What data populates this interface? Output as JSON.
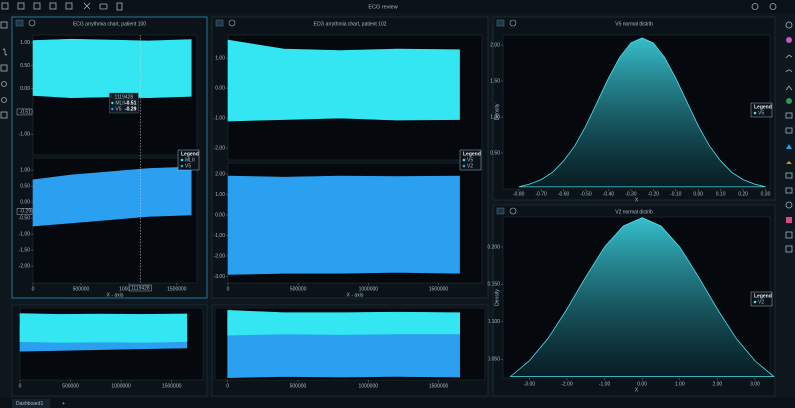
{
  "header": {
    "title": "ECG review"
  },
  "tabs": [
    "Dashboard1",
    "+"
  ],
  "chart_data": [
    {
      "type": "band",
      "title": "ECG arrythmia chart, patient 100",
      "xlabel": "X - axis",
      "xlim": [
        0,
        1710000
      ],
      "xticks": [
        0,
        500000,
        1000000,
        1500000
      ],
      "legend_title": "Legend",
      "series": [
        {
          "name": "MLII",
          "color": "#33e6f2",
          "x": [
            0,
            400000,
            800000,
            1200000,
            1650000
          ],
          "upper": [
            1.05,
            1.08,
            1.06,
            1.04,
            1.07
          ],
          "lower": [
            -0.15,
            -0.2,
            -0.18,
            -0.2,
            -0.17
          ],
          "ylim": [
            -1.45,
            1.17
          ],
          "yticks": [
            {
              "value": 1,
              "label": "1.00"
            },
            {
              "value": 0.5,
              "label": "0.50"
            },
            {
              "value": 0,
              "label": "0.00"
            },
            {
              "value": -0.5,
              "label": "-0.50"
            },
            {
              "value": -1,
              "label": "-1.00"
            }
          ]
        },
        {
          "name": "V5",
          "color": "#2b9ff0",
          "x": [
            0,
            400000,
            800000,
            1200000,
            1650000
          ],
          "upper": [
            0.7,
            0.85,
            0.95,
            1.05,
            1.1
          ],
          "lower": [
            -0.75,
            -0.65,
            -0.55,
            -0.45,
            -0.4
          ],
          "ylim": [
            -2.53,
            1.38
          ],
          "yticks": [
            {
              "value": 1,
              "label": "1.00"
            },
            {
              "value": 0.5,
              "label": "0.50"
            },
            {
              "value": 0,
              "label": "0.00"
            },
            {
              "value": -0.5,
              "label": "-0.50"
            },
            {
              "value": -1,
              "label": "-1.00"
            },
            {
              "value": -1.5,
              "label": "-1.50"
            },
            {
              "value": -2,
              "label": "-2.00"
            }
          ]
        }
      ],
      "crosshair": {
        "x": 1119428,
        "label": "1119428",
        "values": [
          {
            "value": -0.51,
            "label": "-0.51"
          },
          {
            "value": -0.29,
            "label": "-0.29"
          }
        ]
      },
      "tooltip": {
        "title": "1119428",
        "rows": [
          [
            "MLII",
            "-0.51"
          ],
          [
            "V5",
            "-0.29"
          ]
        ]
      }
    },
    {
      "type": "band",
      "title": "ECG arrythmia chart, patient 102",
      "xlabel": "X - axis",
      "xlim": [
        0,
        1810000
      ],
      "xticks": [
        0,
        500000,
        1000000,
        1500000
      ],
      "legend_title": "Legend",
      "series": [
        {
          "name": "V5",
          "color": "#33e6f2",
          "x": [
            0,
            400000,
            800000,
            1200000,
            1650000
          ],
          "upper": [
            1.6,
            1.3,
            1.25,
            1.3,
            1.28
          ],
          "lower": [
            -1.1,
            -1.05,
            -1.0,
            -1.07,
            -1.05
          ],
          "ylim": [
            -2.4,
            1.77
          ],
          "yticks": [
            {
              "value": 1,
              "label": "1.00"
            },
            {
              "value": 0,
              "label": "0.00"
            },
            {
              "value": -1,
              "label": "-1.00"
            },
            {
              "value": -2,
              "label": "-2.00"
            }
          ]
        },
        {
          "name": "V2",
          "color": "#2b9ff0",
          "x": [
            0,
            400000,
            800000,
            1200000,
            1650000
          ],
          "upper": [
            1.9,
            1.85,
            1.9,
            1.88,
            1.9
          ],
          "lower": [
            -2.9,
            -2.85,
            -2.85,
            -2.8,
            -2.85
          ],
          "ylim": [
            -3.32,
            2.54
          ],
          "yticks": [
            {
              "value": 2,
              "label": "2.00"
            },
            {
              "value": 1,
              "label": "1.00"
            },
            {
              "value": 0,
              "label": "0.00"
            },
            {
              "value": -1,
              "label": "-1.00"
            },
            {
              "value": -2,
              "label": "-2.00"
            },
            {
              "value": -3,
              "label": "-3.00"
            }
          ]
        }
      ]
    },
    {
      "type": "area",
      "title": "V5 normal distrib",
      "xlabel": "X",
      "ylabel": "Density",
      "xlim": [
        -0.87,
        0.32
      ],
      "xticks": [
        {
          "value": -0.8,
          "label": "-0.80"
        },
        {
          "value": -0.7,
          "label": "-0.70"
        },
        {
          "value": -0.6,
          "label": "-0.60"
        },
        {
          "value": -0.5,
          "label": "-0.50"
        },
        {
          "value": -0.4,
          "label": "-0.40"
        },
        {
          "value": -0.3,
          "label": "-0.30"
        },
        {
          "value": -0.2,
          "label": "-0.20"
        },
        {
          "value": -0.1,
          "label": "-0.10"
        },
        {
          "value": 0,
          "label": "0.00"
        },
        {
          "value": 0.1,
          "label": "0.10"
        },
        {
          "value": 0.2,
          "label": "0.20"
        },
        {
          "value": 0.3,
          "label": "0.30"
        }
      ],
      "ylim": [
        0,
        2.14
      ],
      "yticks": [
        {
          "value": 0.5,
          "label": "0.50"
        },
        {
          "value": 1,
          "label": "1.00"
        },
        {
          "value": 1.5,
          "label": "1.50"
        },
        {
          "value": 2,
          "label": "2.00"
        }
      ],
      "legend_title": "Legend",
      "series": [
        {
          "name": "V5",
          "color": "#4fe3ee",
          "x": [
            -0.8,
            -0.75,
            -0.7,
            -0.65,
            -0.6,
            -0.55,
            -0.5,
            -0.45,
            -0.4,
            -0.35,
            -0.3,
            -0.25,
            -0.2,
            -0.15,
            -0.1,
            -0.05,
            0,
            0.05,
            0.1,
            0.15,
            0.2,
            0.25,
            0.3
          ],
          "values": [
            0.03,
            0.07,
            0.13,
            0.23,
            0.39,
            0.6,
            0.88,
            1.21,
            1.54,
            1.83,
            2.03,
            2.1,
            2.03,
            1.83,
            1.54,
            1.21,
            0.88,
            0.6,
            0.39,
            0.23,
            0.13,
            0.07,
            0.03
          ]
        }
      ]
    },
    {
      "type": "area",
      "title": "V2 normal distrib",
      "xlabel": "X",
      "ylabel": "Density",
      "xlim": [
        -3.7,
        3.4
      ],
      "xticks": [
        {
          "value": -3,
          "label": "-3.00"
        },
        {
          "value": -2,
          "label": "-2.00"
        },
        {
          "value": -1,
          "label": "-1.00"
        },
        {
          "value": 0,
          "label": "0.00"
        },
        {
          "value": 1,
          "label": "1.00"
        },
        {
          "value": 2,
          "label": "2.00"
        },
        {
          "value": 3,
          "label": "3.00"
        }
      ],
      "ylim": [
        0.025,
        0.24
      ],
      "yticks": [
        {
          "value": 0.05,
          "label": "0.050"
        },
        {
          "value": 0.1,
          "label": "0.100"
        },
        {
          "value": 0.15,
          "label": "0.150"
        },
        {
          "value": 0.2,
          "label": "0.200"
        }
      ],
      "legend_title": "Legend",
      "series": [
        {
          "name": "V2",
          "color": "#4fe3ee",
          "x": [
            -3.5,
            -3,
            -2.5,
            -2,
            -1.5,
            -1,
            -0.5,
            0,
            0.5,
            1,
            1.5,
            2,
            2.5,
            3,
            3.5
          ],
          "values": [
            0.027,
            0.048,
            0.078,
            0.117,
            0.16,
            0.2,
            0.228,
            0.239,
            0.228,
            0.2,
            0.16,
            0.117,
            0.078,
            0.048,
            0.027
          ]
        }
      ]
    },
    {
      "type": "band",
      "xlim": [
        0,
        1810000
      ],
      "xticks": [
        0,
        500000,
        1000000,
        1500000
      ],
      "ylim": [
        -2.5,
        2
      ],
      "series": [
        {
          "color": "#2b9ff0",
          "x": [
            0,
            400000,
            800000,
            1200000,
            1650000
          ],
          "upper": [
            0.9,
            0.95,
            1.0,
            1.0,
            1.05
          ],
          "lower": [
            -0.7,
            -0.65,
            -0.6,
            -0.55,
            -0.5
          ]
        },
        {
          "color": "#33e6f2",
          "x": [
            0,
            400000,
            800000,
            1200000,
            1650000
          ],
          "upper": [
            1.65,
            1.6,
            1.62,
            1.6,
            1.63
          ],
          "lower": [
            -0.1,
            -0.15,
            -0.12,
            -0.15,
            -0.1
          ]
        }
      ]
    },
    {
      "type": "band",
      "xlim": [
        -90000,
        1830000
      ],
      "xticks": [
        0,
        500000,
        1000000,
        1500000
      ],
      "ylim": [
        -3.5,
        2.6
      ],
      "series": [
        {
          "color": "#2b9ff0",
          "x": [
            0,
            400000,
            800000,
            1200000,
            1650000
          ],
          "upper": [
            1.9,
            1.85,
            1.9,
            1.88,
            1.9
          ],
          "lower": [
            -3.3,
            -3.2,
            -3.25,
            -3.2,
            -3.25
          ]
        },
        {
          "color": "#33e6f2",
          "x": [
            0,
            400000,
            800000,
            1200000,
            1650000
          ],
          "upper": [
            2.4,
            2.2,
            2.2,
            2.25,
            2.2
          ],
          "lower": [
            0.3,
            0.4,
            0.35,
            0.4,
            0.4
          ]
        }
      ]
    }
  ]
}
